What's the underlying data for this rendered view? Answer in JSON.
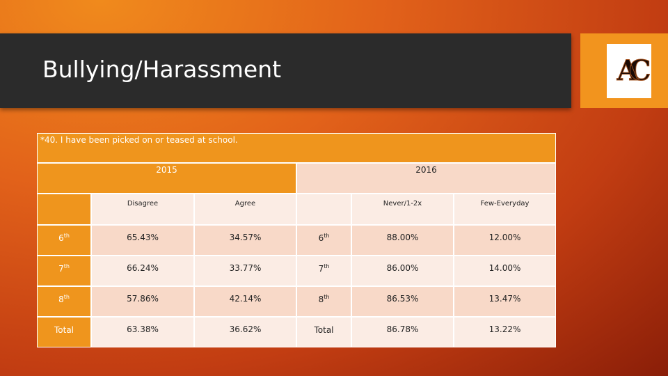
{
  "title": "Bullying/Harassment",
  "logo_text": "AC",
  "question": "*40. I have been picked on or teased at school.",
  "years": [
    "2015",
    "2016"
  ],
  "headers_2015": [
    "Disagree",
    "Agree"
  ],
  "headers_2016": [
    "Never/1-2x",
    "Few-Everyday"
  ],
  "rows": [
    {
      "grade": "6",
      "sup": "th",
      "d": "65.43%",
      "a": "34.57%",
      "n": "88.00%",
      "f": "12.00%"
    },
    {
      "grade": "7",
      "sup": "th",
      "d": "66.24%",
      "a": "33.77%",
      "n": "86.00%",
      "f": "14.00%"
    },
    {
      "grade": "8",
      "sup": "th",
      "d": "57.86%",
      "a": "42.14%",
      "n": "86.53%",
      "f": "13.47%"
    },
    {
      "grade": "Total",
      "sup": "",
      "d": "63.38%",
      "a": "36.62%",
      "n": "86.78%",
      "f": "13.22%"
    }
  ]
}
